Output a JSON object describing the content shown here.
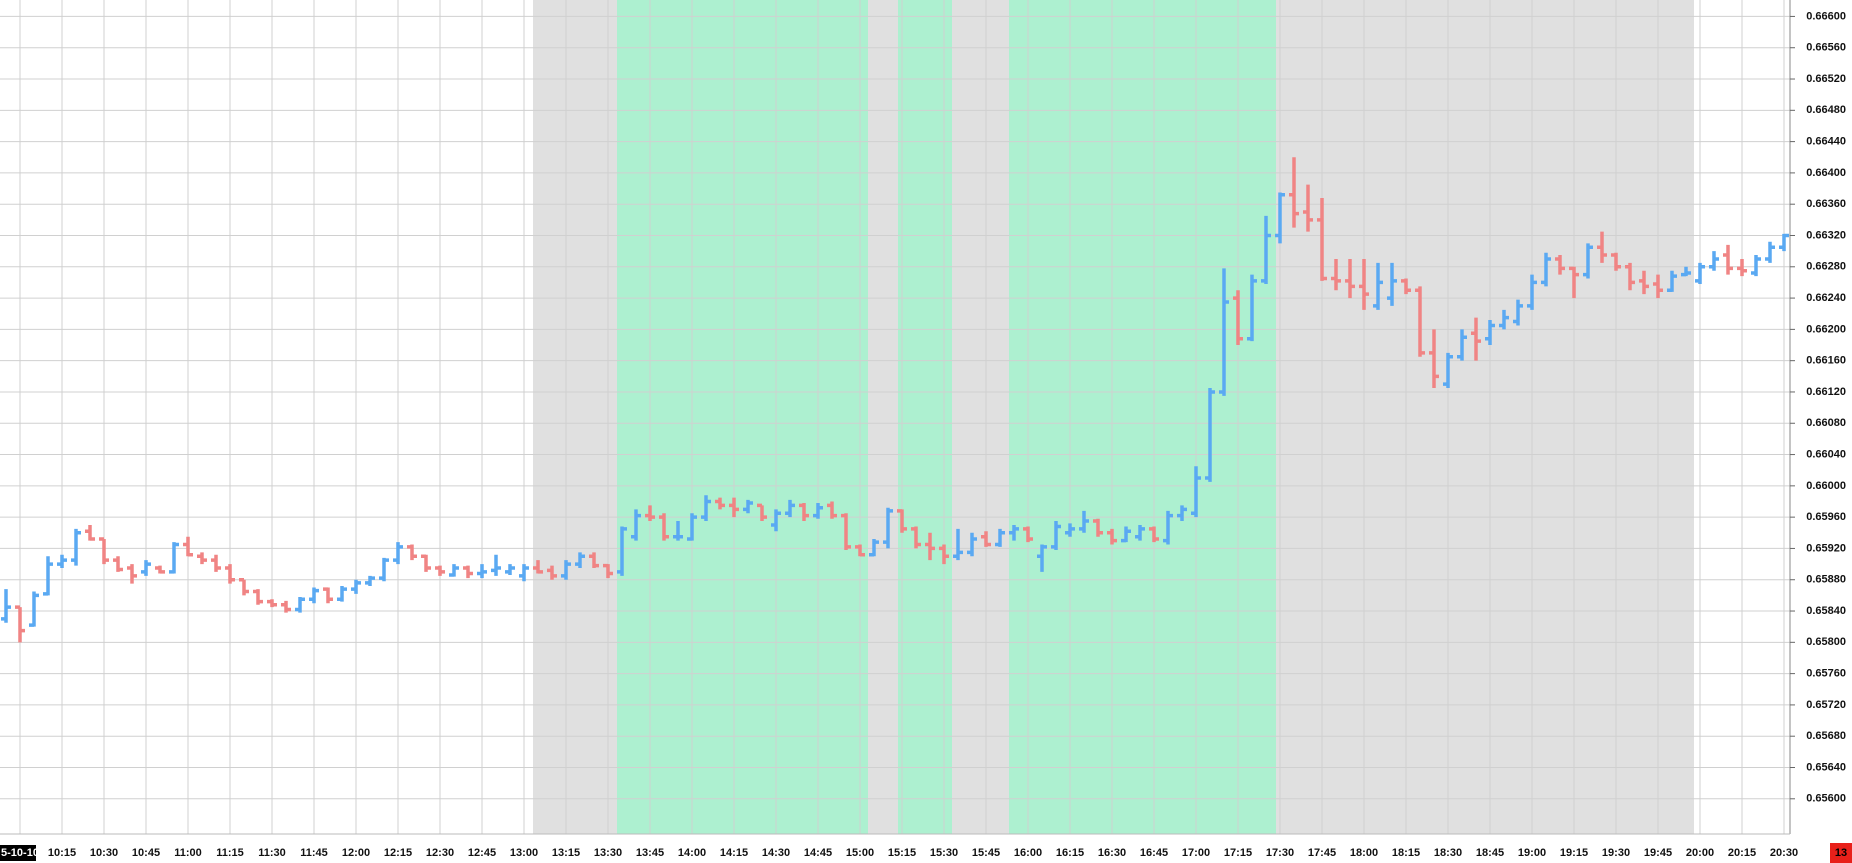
{
  "chart_data": {
    "type": "ohlc",
    "up_color": "#5aa9f2",
    "down_color": "#f08484",
    "ylim": [
      0.65555,
      0.66621
    ],
    "yticks": [
      {
        "value": 0.666,
        "label": "0.66600"
      },
      {
        "value": 0.6656,
        "label": "0.66560"
      },
      {
        "value": 0.6652,
        "label": "0.66520"
      },
      {
        "value": 0.6648,
        "label": "0.66480"
      },
      {
        "value": 0.6644,
        "label": "0.66440"
      },
      {
        "value": 0.664,
        "label": "0.66400"
      },
      {
        "value": 0.6636,
        "label": "0.66360"
      },
      {
        "value": 0.6632,
        "label": "0.66320"
      },
      {
        "value": 0.6628,
        "label": "0.66280"
      },
      {
        "value": 0.6624,
        "label": "0.66240"
      },
      {
        "value": 0.662,
        "label": "0.66200"
      },
      {
        "value": 0.6616,
        "label": "0.66160"
      },
      {
        "value": 0.6612,
        "label": "0.66120"
      },
      {
        "value": 0.6608,
        "label": "0.66080"
      },
      {
        "value": 0.6604,
        "label": "0.66040"
      },
      {
        "value": 0.66,
        "label": "0.66000"
      },
      {
        "value": 0.6596,
        "label": "0.65960"
      },
      {
        "value": 0.6592,
        "label": "0.65920"
      },
      {
        "value": 0.6588,
        "label": "0.65880"
      },
      {
        "value": 0.6584,
        "label": "0.65840"
      },
      {
        "value": 0.658,
        "label": "0.65800"
      },
      {
        "value": 0.6576,
        "label": "0.65760"
      },
      {
        "value": 0.6572,
        "label": "0.65720"
      },
      {
        "value": 0.6568,
        "label": "0.65680"
      },
      {
        "value": 0.6564,
        "label": "0.65640"
      },
      {
        "value": 0.656,
        "label": "0.65600"
      }
    ],
    "grid": true,
    "bar_countdown": "13",
    "categories": [
      null,
      "5-10-10",
      null,
      null,
      "10:15",
      null,
      null,
      "10:30",
      null,
      null,
      "10:45",
      null,
      null,
      "11:00",
      null,
      null,
      "11:15",
      null,
      null,
      "11:30",
      null,
      null,
      "11:45",
      null,
      null,
      "12:00",
      null,
      null,
      "12:15",
      null,
      null,
      "12:30",
      null,
      null,
      "12:45",
      null,
      null,
      "13:00",
      null,
      null,
      "13:15",
      null,
      null,
      "13:30",
      null,
      null,
      "13:45",
      null,
      null,
      "14:00",
      null,
      null,
      "14:15",
      null,
      null,
      "14:30",
      null,
      null,
      "14:45",
      null,
      null,
      "15:00",
      null,
      null,
      "15:15",
      null,
      null,
      "15:30",
      null,
      null,
      "15:45",
      null,
      null,
      "16:00",
      null,
      null,
      "16:15",
      null,
      null,
      "16:30",
      null,
      null,
      "16:45",
      null,
      null,
      "17:00",
      null,
      null,
      "17:15",
      null,
      null,
      "17:30",
      null,
      null,
      "17:45",
      null,
      null,
      "18:00",
      null,
      null,
      "18:15",
      null,
      null,
      "18:30",
      null,
      null,
      "18:45",
      null,
      null,
      "19:00",
      null,
      null,
      "19:15",
      null,
      null,
      "19:30",
      null,
      null,
      "19:45",
      null,
      null,
      "20:00",
      null,
      null,
      "20:15",
      null,
      null,
      "20:30"
    ],
    "open": [
      0.6583,
      0.65845,
      0.65822,
      0.65862,
      0.659,
      0.65905,
      0.65942,
      0.65932,
      0.65905,
      0.65895,
      0.6589,
      0.65895,
      0.6589,
      0.65925,
      0.6591,
      0.65905,
      0.65895,
      0.6588,
      0.65865,
      0.65852,
      0.65848,
      0.65842,
      0.65855,
      0.65868,
      0.65855,
      0.65868,
      0.65876,
      0.65882,
      0.65905,
      0.65922,
      0.6591,
      0.65895,
      0.65886,
      0.65895,
      0.65888,
      0.65892,
      0.6589,
      0.65885,
      0.65895,
      0.65892,
      0.65885,
      0.659,
      0.6591,
      0.65898,
      0.6589,
      0.65935,
      0.65962,
      0.6596,
      0.65935,
      0.65932,
      0.6596,
      0.6598,
      0.65975,
      0.6597,
      0.65975,
      0.6595,
      0.65965,
      0.65975,
      0.65962,
      0.65975,
      0.65962,
      0.65922,
      0.65912,
      0.65928,
      0.65968,
      0.65945,
      0.65925,
      0.6592,
      0.6591,
      0.65915,
      0.65935,
      0.65925,
      0.6594,
      0.65945,
      0.6591,
      0.65922,
      0.6594,
      0.65945,
      0.65955,
      0.6594,
      0.6593,
      0.65935,
      0.65945,
      0.6593,
      0.65962,
      0.65965,
      0.6601,
      0.6612,
      0.6624,
      0.66188,
      0.66262,
      0.6632,
      0.66372,
      0.6635,
      0.6634,
      0.66265,
      0.66262,
      0.66255,
      0.6623,
      0.6624,
      0.66262,
      0.6625,
      0.6617,
      0.6613,
      0.66165,
      0.66195,
      0.66188,
      0.66205,
      0.6621,
      0.6623,
      0.6626,
      0.6629,
      0.66278,
      0.6627,
      0.66305,
      0.66295,
      0.6628,
      0.66262,
      0.66258,
      0.6625,
      0.6627,
      0.66262,
      0.6628,
      0.66295,
      0.66278,
      0.66272,
      0.6629,
      0.66305
    ],
    "high": [
      0.65868,
      0.65845,
      0.65865,
      0.6591,
      0.65912,
      0.65945,
      0.6595,
      0.65932,
      0.6591,
      0.659,
      0.65905,
      0.65898,
      0.65928,
      0.65935,
      0.65915,
      0.65912,
      0.659,
      0.6588,
      0.65868,
      0.65855,
      0.65853,
      0.65858,
      0.6587,
      0.6587,
      0.65872,
      0.6588,
      0.65885,
      0.65908,
      0.65928,
      0.65925,
      0.65912,
      0.65898,
      0.659,
      0.65898,
      0.659,
      0.65912,
      0.659,
      0.659,
      0.65905,
      0.65898,
      0.65905,
      0.65915,
      0.65915,
      0.659,
      0.65948,
      0.6597,
      0.65975,
      0.65965,
      0.65955,
      0.65965,
      0.65988,
      0.65985,
      0.65985,
      0.65982,
      0.65975,
      0.6597,
      0.65982,
      0.65978,
      0.65978,
      0.6598,
      0.65965,
      0.65925,
      0.65932,
      0.65972,
      0.6597,
      0.65948,
      0.6594,
      0.65925,
      0.65945,
      0.6594,
      0.65942,
      0.65945,
      0.6595,
      0.65948,
      0.65925,
      0.65955,
      0.65952,
      0.65968,
      0.65958,
      0.65945,
      0.65948,
      0.6595,
      0.65948,
      0.65968,
      0.65975,
      0.66025,
      0.66125,
      0.66278,
      0.6625,
      0.6627,
      0.66345,
      0.66375,
      0.6642,
      0.66385,
      0.66368,
      0.6629,
      0.6629,
      0.6629,
      0.66285,
      0.66285,
      0.66265,
      0.66255,
      0.662,
      0.6617,
      0.662,
      0.66215,
      0.66212,
      0.66225,
      0.66238,
      0.6627,
      0.66298,
      0.66295,
      0.6628,
      0.6631,
      0.66325,
      0.66298,
      0.66285,
      0.66275,
      0.6627,
      0.66275,
      0.6628,
      0.66285,
      0.663,
      0.66308,
      0.6629,
      0.66295,
      0.66312,
      0.66322
    ],
    "low": [
      0.65825,
      0.658,
      0.6582,
      0.6586,
      0.65895,
      0.65898,
      0.6593,
      0.659,
      0.6589,
      0.65875,
      0.65885,
      0.65888,
      0.65888,
      0.6591,
      0.659,
      0.6589,
      0.65875,
      0.6586,
      0.65848,
      0.65845,
      0.65838,
      0.65838,
      0.6585,
      0.6585,
      0.65852,
      0.65862,
      0.65872,
      0.65878,
      0.659,
      0.65905,
      0.6589,
      0.65885,
      0.65884,
      0.65882,
      0.65882,
      0.65885,
      0.65886,
      0.65878,
      0.65888,
      0.6588,
      0.6588,
      0.65895,
      0.65895,
      0.65882,
      0.65885,
      0.6593,
      0.65955,
      0.6593,
      0.6593,
      0.6593,
      0.65955,
      0.6597,
      0.6596,
      0.65965,
      0.65955,
      0.65942,
      0.6596,
      0.65955,
      0.65958,
      0.65958,
      0.65918,
      0.6591,
      0.6591,
      0.6592,
      0.6594,
      0.6592,
      0.65905,
      0.659,
      0.65905,
      0.6591,
      0.65922,
      0.65922,
      0.6593,
      0.65928,
      0.6589,
      0.65918,
      0.65935,
      0.6594,
      0.65935,
      0.65925,
      0.65928,
      0.6593,
      0.65928,
      0.65925,
      0.65955,
      0.6596,
      0.66005,
      0.66115,
      0.6618,
      0.66185,
      0.66258,
      0.6631,
      0.6633,
      0.66325,
      0.66262,
      0.6625,
      0.6624,
      0.66225,
      0.66225,
      0.6623,
      0.66245,
      0.66165,
      0.66125,
      0.66125,
      0.6616,
      0.6616,
      0.6618,
      0.662,
      0.66205,
      0.66225,
      0.66255,
      0.6627,
      0.6624,
      0.66265,
      0.66285,
      0.66275,
      0.6625,
      0.66245,
      0.6624,
      0.66248,
      0.66268,
      0.66258,
      0.66275,
      0.6627,
      0.66268,
      0.66268,
      0.66285,
      0.663
    ],
    "close": [
      0.65845,
      0.65815,
      0.6586,
      0.659,
      0.65905,
      0.6594,
      0.65932,
      0.65905,
      0.65893,
      0.65885,
      0.659,
      0.6589,
      0.65925,
      0.65912,
      0.65905,
      0.65895,
      0.6588,
      0.65865,
      0.65852,
      0.65848,
      0.65842,
      0.65855,
      0.65866,
      0.65855,
      0.65868,
      0.65876,
      0.65882,
      0.65905,
      0.65922,
      0.6591,
      0.65895,
      0.6589,
      0.65895,
      0.65888,
      0.6589,
      0.65895,
      0.65895,
      0.65895,
      0.6589,
      0.65885,
      0.659,
      0.6591,
      0.65898,
      0.65888,
      0.65945,
      0.65962,
      0.6596,
      0.65935,
      0.65935,
      0.6596,
      0.6598,
      0.65975,
      0.6597,
      0.65978,
      0.6596,
      0.65965,
      0.65975,
      0.65962,
      0.65972,
      0.65962,
      0.65922,
      0.65912,
      0.65928,
      0.65968,
      0.65945,
      0.65925,
      0.6592,
      0.6591,
      0.65915,
      0.65932,
      0.65925,
      0.6594,
      0.65945,
      0.65932,
      0.65922,
      0.65948,
      0.65945,
      0.65955,
      0.6594,
      0.6593,
      0.65942,
      0.65945,
      0.65932,
      0.65962,
      0.6597,
      0.6601,
      0.6612,
      0.66235,
      0.66188,
      0.66262,
      0.6632,
      0.66372,
      0.66348,
      0.6634,
      0.66265,
      0.66262,
      0.66255,
      0.66245,
      0.6626,
      0.66262,
      0.6625,
      0.6617,
      0.6614,
      0.66165,
      0.6619,
      0.66185,
      0.66205,
      0.66215,
      0.6623,
      0.6626,
      0.6629,
      0.66278,
      0.6627,
      0.66305,
      0.66295,
      0.6628,
      0.6626,
      0.66255,
      0.6625,
      0.66268,
      0.66272,
      0.6628,
      0.6629,
      0.66278,
      0.66275,
      0.6629,
      0.66305,
      0.6632
    ]
  }
}
